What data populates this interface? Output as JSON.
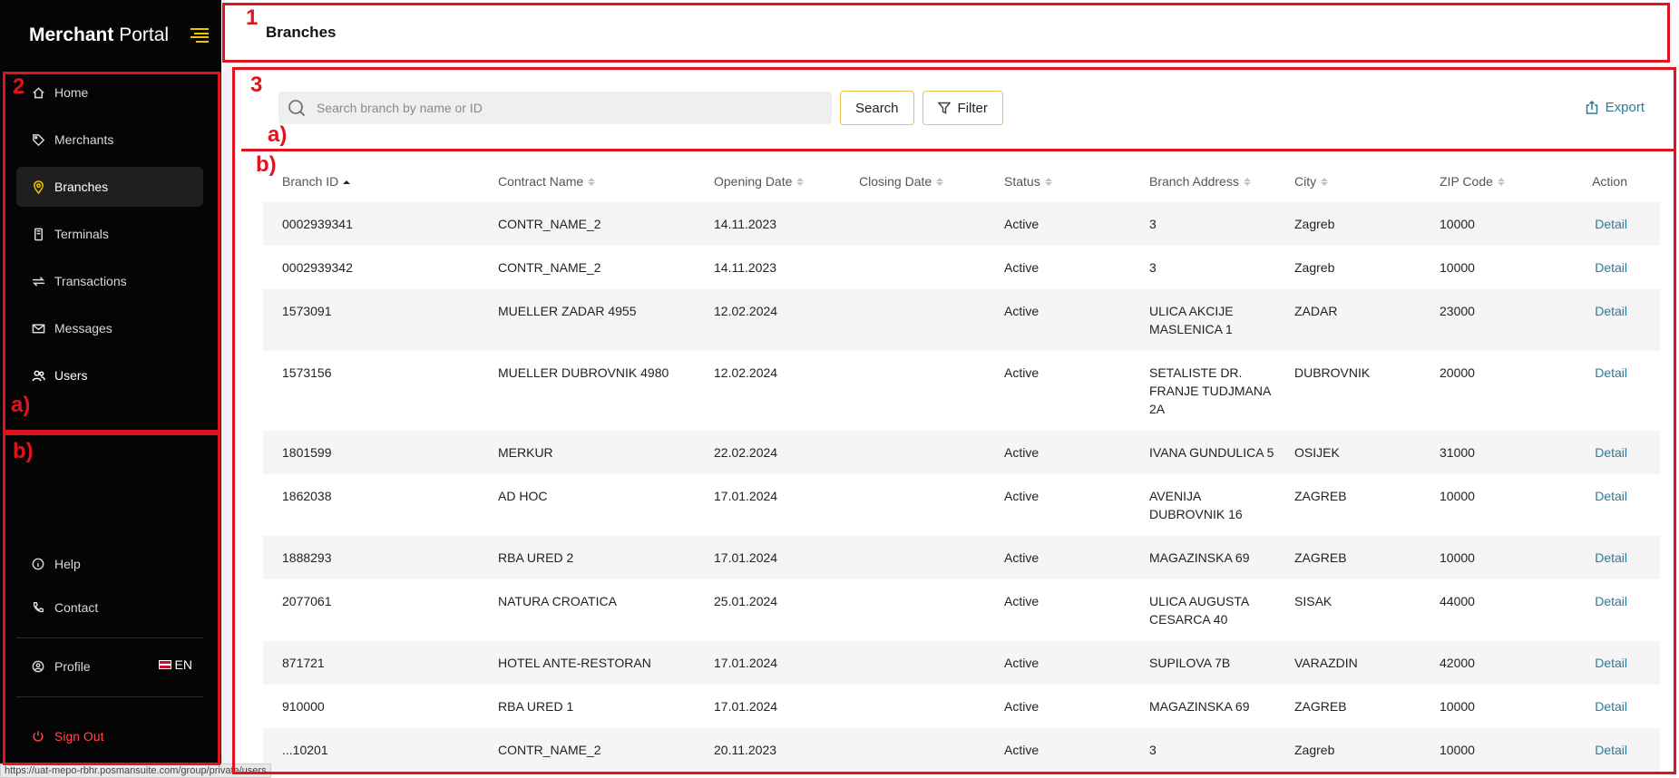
{
  "sidebar": {
    "brand_bold": "Merchant",
    "brand_rest": " Portal",
    "nav": [
      {
        "label": "Home",
        "icon": "home-icon"
      },
      {
        "label": "Merchants",
        "icon": "tag-icon"
      },
      {
        "label": "Branches",
        "icon": "location-pin-icon",
        "active": true
      },
      {
        "label": "Terminals",
        "icon": "terminal-icon"
      },
      {
        "label": "Transactions",
        "icon": "transfer-arrows-icon"
      },
      {
        "label": "Messages",
        "icon": "envelope-icon"
      },
      {
        "label": "Users",
        "icon": "users-icon"
      }
    ],
    "help": "Help",
    "contact": "Contact",
    "profile": "Profile",
    "language": "EN",
    "sign_out": "Sign Out"
  },
  "header": {
    "title": "Branches"
  },
  "toolbar": {
    "search_placeholder": "Search branch by name or ID",
    "search_button": "Search",
    "filter_button": "Filter",
    "export": "Export"
  },
  "table": {
    "columns": [
      "Branch ID",
      "Contract Name",
      "Opening Date",
      "Closing Date",
      "Status",
      "Branch Address",
      "City",
      "ZIP Code",
      "Action"
    ],
    "rows": [
      {
        "id": "0002939341",
        "contract": "CONTR_NAME_2",
        "opening": "14.11.2023",
        "closing": "",
        "status": "Active",
        "address": "3",
        "city": "Zagreb",
        "zip": "10000",
        "action": "Detail"
      },
      {
        "id": "0002939342",
        "contract": "CONTR_NAME_2",
        "opening": "14.11.2023",
        "closing": "",
        "status": "Active",
        "address": "3",
        "city": "Zagreb",
        "zip": "10000",
        "action": "Detail"
      },
      {
        "id": "1573091",
        "contract": "MUELLER ZADAR 4955",
        "opening": "12.02.2024",
        "closing": "",
        "status": "Active",
        "address": "ULICA AKCIJE MASLENICA 1",
        "city": "ZADAR",
        "zip": "23000",
        "action": "Detail"
      },
      {
        "id": "1573156",
        "contract": "MUELLER DUBROVNIK 4980",
        "opening": "12.02.2024",
        "closing": "",
        "status": "Active",
        "address": "SETALISTE DR. FRANJE TUDJMANA 2A",
        "city": "DUBROVNIK",
        "zip": "20000",
        "action": "Detail"
      },
      {
        "id": "1801599",
        "contract": "MERKUR",
        "opening": "22.02.2024",
        "closing": "",
        "status": "Active",
        "address": "IVANA GUNDULICA 5",
        "city": "OSIJEK",
        "zip": "31000",
        "action": "Detail"
      },
      {
        "id": "1862038",
        "contract": "AD HOC",
        "opening": "17.01.2024",
        "closing": "",
        "status": "Active",
        "address": "AVENIJA DUBROVNIK 16",
        "city": "ZAGREB",
        "zip": "10000",
        "action": "Detail"
      },
      {
        "id": "1888293",
        "contract": "RBA URED 2",
        "opening": "17.01.2024",
        "closing": "",
        "status": "Active",
        "address": "MAGAZINSKA 69",
        "city": "ZAGREB",
        "zip": "10000",
        "action": "Detail"
      },
      {
        "id": "2077061",
        "contract": "NATURA CROATICA",
        "opening": "25.01.2024",
        "closing": "",
        "status": "Active",
        "address": "ULICA AUGUSTA CESARCA 40",
        "city": "SISAK",
        "zip": "44000",
        "action": "Detail"
      },
      {
        "id": "871721",
        "contract": "HOTEL ANTE-RESTORAN",
        "opening": "17.01.2024",
        "closing": "",
        "status": "Active",
        "address": "SUPILOVA 7B",
        "city": "VARAZDIN",
        "zip": "42000",
        "action": "Detail"
      },
      {
        "id": "910000",
        "contract": "RBA URED 1",
        "opening": "17.01.2024",
        "closing": "",
        "status": "Active",
        "address": "MAGAZINSKA 69",
        "city": "ZAGREB",
        "zip": "10000",
        "action": "Detail"
      },
      {
        "id": "...10201",
        "contract": "CONTR_NAME_2",
        "opening": "20.11.2023",
        "closing": "",
        "status": "Active",
        "address": "3",
        "city": "Zagreb",
        "zip": "10000",
        "action": "Detail"
      }
    ]
  },
  "status_url": "https://uat-mepo-rbhr.posmansuite.com/group/private/users",
  "annotations": {
    "header_label": "1",
    "sidebar_label": "2",
    "content_label": "3",
    "sidebar_nav_label": "a)",
    "sidebar_lower_label": "b)",
    "toolbar_label": "a)",
    "table_label": "b)"
  },
  "colors": {
    "accent": "#f2c400",
    "link": "#2b7a99",
    "danger": "#ff4a4a",
    "annotation": "#e0141e"
  }
}
